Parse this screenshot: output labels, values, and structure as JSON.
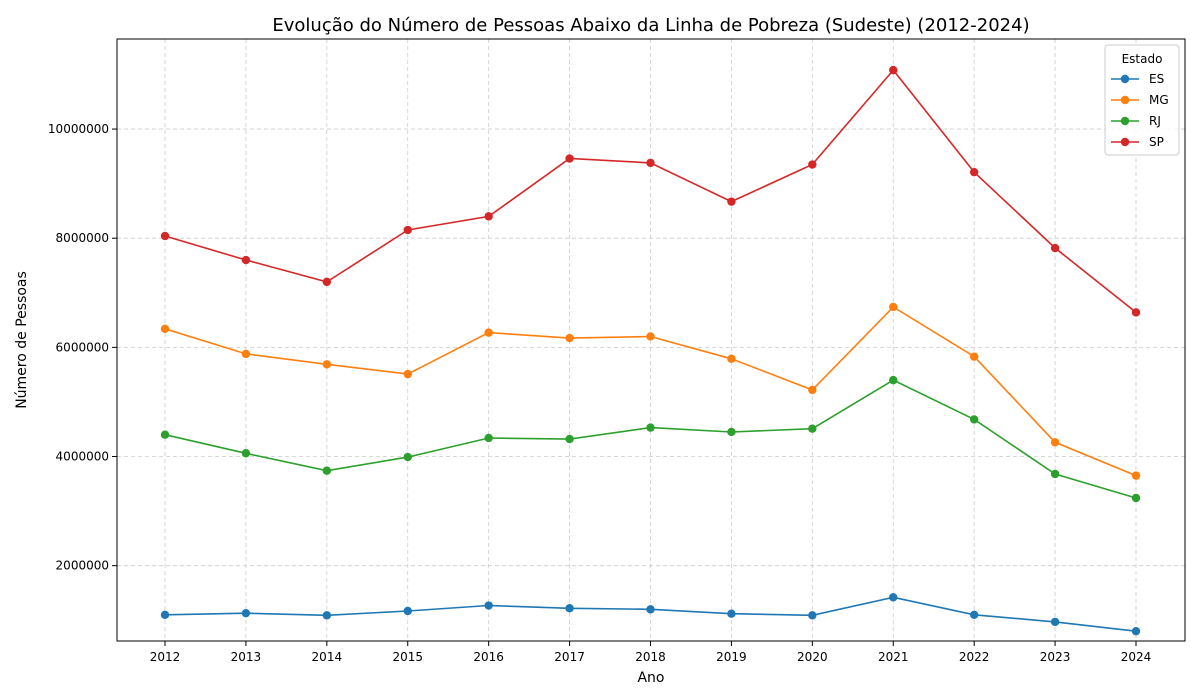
{
  "chart_data": {
    "type": "line",
    "title": "Evolução do Número de Pessoas Abaixo da Linha de Pobreza (Sudeste) (2012-2024)",
    "xlabel": "Ano",
    "ylabel": "Número de Pessoas",
    "x": [
      "2012",
      "2013",
      "2014",
      "2015",
      "2016",
      "2017",
      "2018",
      "2019",
      "2020",
      "2021",
      "2022",
      "2023",
      "2024"
    ],
    "yticks": [
      "2000000",
      "4000000",
      "6000000",
      "8000000",
      "10000000"
    ],
    "ylim": [
      620000,
      11650000
    ],
    "grid": true,
    "legend": {
      "title": "Estado",
      "placement": "top-right"
    },
    "series": [
      {
        "name": "ES",
        "color": "#1f77b4",
        "values": [
          1100000,
          1130000,
          1090000,
          1170000,
          1270000,
          1220000,
          1200000,
          1120000,
          1090000,
          1420000,
          1100000,
          970000,
          800000
        ]
      },
      {
        "name": "MG",
        "color": "#ff7f0e",
        "values": [
          6340000,
          5880000,
          5690000,
          5510000,
          6270000,
          6170000,
          6200000,
          5790000,
          5220000,
          6740000,
          5830000,
          4260000,
          3650000
        ]
      },
      {
        "name": "RJ",
        "color": "#2ca02c",
        "values": [
          4400000,
          4060000,
          3740000,
          3990000,
          4340000,
          4320000,
          4530000,
          4450000,
          4510000,
          5400000,
          4680000,
          3680000,
          3240000
        ]
      },
      {
        "name": "SP",
        "color": "#d62728",
        "values": [
          8040000,
          7600000,
          7200000,
          8150000,
          8400000,
          9460000,
          9380000,
          8670000,
          9350000,
          11080000,
          9210000,
          7820000,
          6640000
        ]
      }
    ]
  }
}
